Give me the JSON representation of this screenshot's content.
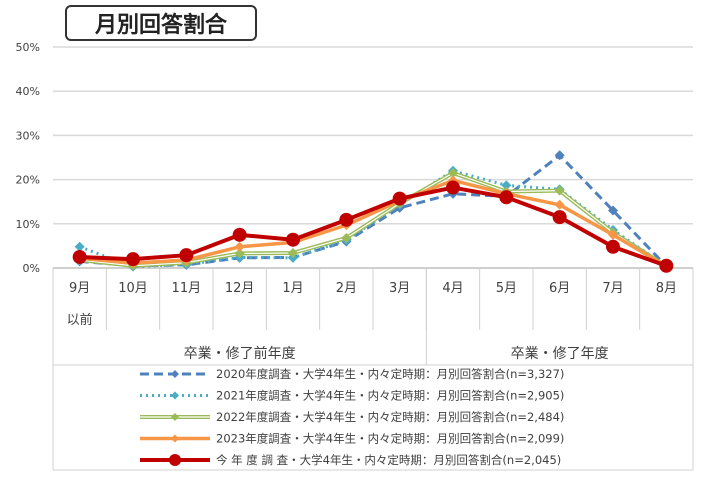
{
  "chart_data": {
    "type": "line",
    "title": "月別回答割合",
    "categories": [
      "9月",
      "10月",
      "11月",
      "12月",
      "1月",
      "2月",
      "3月",
      "4月",
      "5月",
      "6月",
      "7月",
      "8月"
    ],
    "category_sublabels": {
      "0": "以前"
    },
    "groups": [
      {
        "label": "卒業・修了前年度",
        "span": 7
      },
      {
        "label": "卒業・修了年度",
        "span": 5
      }
    ],
    "yticks": [
      "0%",
      "10%",
      "20%",
      "30%",
      "40%",
      "50%"
    ],
    "ylim": [
      0,
      50
    ],
    "ylabel": "",
    "xlabel": "",
    "grid": true,
    "legend_position": "bottom",
    "series": [
      {
        "name": "2020年度調査・大学4年生・内々定時期：月別回答割合(n=3,327)",
        "color": "#4F81BD",
        "style": "dash",
        "marker": "diamond",
        "values": [
          1.5,
          0.5,
          0.7,
          2.3,
          2.4,
          6.0,
          13.6,
          16.8,
          16.2,
          25.5,
          13.0,
          0.4
        ]
      },
      {
        "name": "2021年度調査・大学4年生・内々定時期：月別回答割合(n=2,905)",
        "color": "#4BACC6",
        "style": "dot",
        "marker": "diamond",
        "values": [
          4.8,
          0.3,
          0.8,
          2.4,
          2.3,
          6.3,
          14.3,
          22.0,
          18.7,
          17.8,
          8.6,
          0.4
        ]
      },
      {
        "name": "2022年度調査・大学4年生・内々定時期：月別回答割合(n=2,484)",
        "color": "#9BBB59",
        "style": "double",
        "marker": "diamond",
        "values": [
          1.8,
          0.5,
          1.2,
          3.3,
          3.4,
          6.8,
          14.6,
          21.5,
          17.3,
          17.5,
          8.0,
          0.4
        ]
      },
      {
        "name": "2023年度調査・大学4年生・内々定時期：月別回答割合(n=2,099)",
        "color": "#F79646",
        "style": "solid",
        "marker": "diamond",
        "values": [
          2.2,
          1.1,
          1.8,
          4.8,
          5.8,
          9.7,
          15.2,
          19.8,
          16.8,
          14.3,
          7.5,
          0.4
        ]
      },
      {
        "name": "今 年 度 調 査・大学4年生・内々定時期：月別回答割合(n=2,045)",
        "color": "#C00000",
        "style": "thick",
        "marker": "circle",
        "values": [
          2.5,
          2.0,
          2.9,
          7.5,
          6.4,
          10.9,
          15.7,
          18.2,
          16.0,
          11.5,
          4.8,
          0.5
        ]
      }
    ]
  }
}
